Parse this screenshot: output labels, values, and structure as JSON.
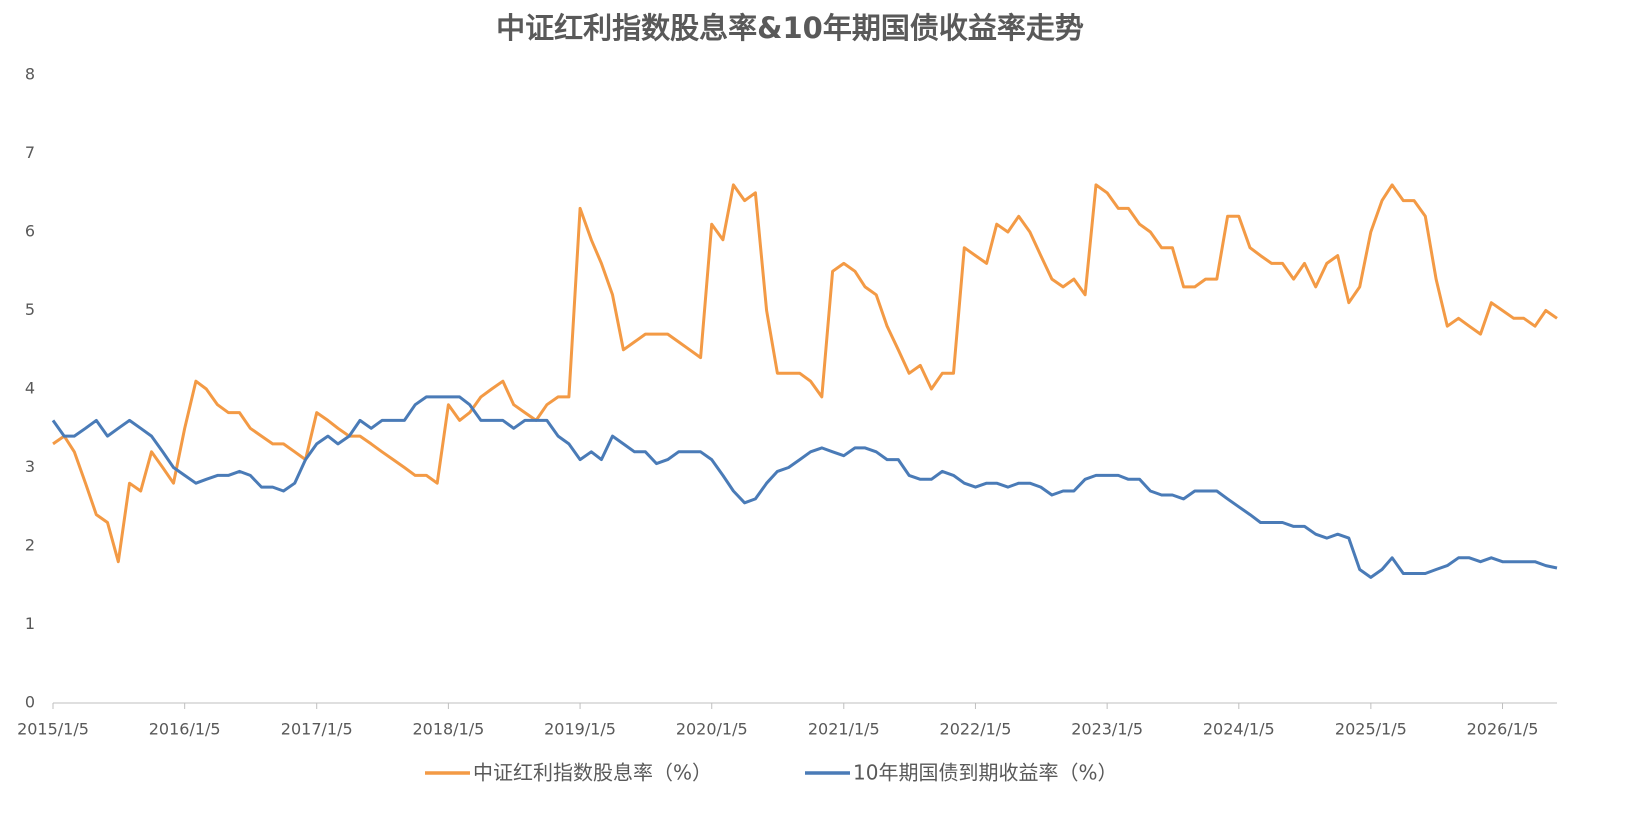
{
  "chart_data": {
    "type": "line",
    "title": "中证红利指数股息率&10年期国债收益率走势",
    "x": [
      "2015/1/5",
      "2015/2/5",
      "2015/3/5",
      "2015/4/5",
      "2015/5/5",
      "2015/6/5",
      "2015/7/5",
      "2015/8/5",
      "2015/9/5",
      "2015/10/5",
      "2015/11/5",
      "2015/12/5",
      "2016/1/5",
      "2016/2/5",
      "2016/3/5",
      "2016/4/5",
      "2016/5/5",
      "2016/6/5",
      "2016/7/5",
      "2016/8/5",
      "2016/9/5",
      "2016/10/5",
      "2016/11/5",
      "2016/12/5",
      "2017/1/5",
      "2017/2/5",
      "2017/3/5",
      "2017/4/5",
      "2017/5/5",
      "2017/6/5",
      "2017/7/5",
      "2017/8/5",
      "2017/9/5",
      "2017/10/5",
      "2017/11/5",
      "2017/12/5",
      "2018/1/5",
      "2018/2/5",
      "2018/3/5",
      "2018/4/5",
      "2018/5/5",
      "2018/6/5",
      "2018/7/5",
      "2018/8/5",
      "2018/9/5",
      "2018/10/5",
      "2018/11/5",
      "2018/12/5",
      "2019/1/5",
      "2019/2/5",
      "2019/3/5",
      "2019/4/5",
      "2019/5/5",
      "2019/6/5",
      "2019/7/5",
      "2019/8/5",
      "2019/9/5",
      "2019/10/5",
      "2019/11/5",
      "2019/12/5",
      "2020/1/5",
      "2020/2/5",
      "2020/3/5",
      "2020/4/5",
      "2020/5/5",
      "2020/6/5",
      "2020/7/5",
      "2020/8/5",
      "2020/9/5",
      "2020/10/5",
      "2020/11/5",
      "2020/12/5",
      "2021/1/5",
      "2021/2/5",
      "2021/3/5",
      "2021/4/5",
      "2021/5/5",
      "2021/6/5",
      "2021/7/5",
      "2021/8/5",
      "2021/9/5",
      "2021/10/5",
      "2021/11/5",
      "2021/12/5",
      "2022/1/5",
      "2022/2/5",
      "2022/3/5",
      "2022/4/5",
      "2022/5/5",
      "2022/6/5",
      "2022/7/5",
      "2022/8/5",
      "2022/9/5",
      "2022/10/5",
      "2022/11/5",
      "2022/12/5",
      "2023/1/5",
      "2023/2/5",
      "2023/3/5",
      "2023/4/5",
      "2023/5/5",
      "2023/6/5",
      "2023/7/5",
      "2023/8/5",
      "2023/9/5",
      "2023/10/5",
      "2023/11/5",
      "2023/12/5",
      "2024/1/5",
      "2024/2/5",
      "2024/3/5",
      "2024/4/5",
      "2024/5/5",
      "2024/6/5",
      "2024/7/5",
      "2024/8/5",
      "2024/9/5",
      "2024/10/5",
      "2024/11/5",
      "2024/12/5",
      "2025/1/5",
      "2025/2/5",
      "2025/3/5",
      "2025/4/5",
      "2025/5/5",
      "2025/6/5",
      "2025/7/5",
      "2025/8/5",
      "2025/9/5",
      "2025/10/5",
      "2025/11/5",
      "2025/12/5",
      "2026/1/5",
      "2026/2/5",
      "2026/3/5",
      "2026/4/5",
      "2026/5/5",
      "2026/6/5"
    ],
    "series": [
      {
        "name": "中证红利指数股息率（%）",
        "color": "#f39a45",
        "values": [
          3.3,
          3.4,
          3.2,
          2.8,
          2.4,
          2.3,
          1.8,
          2.8,
          2.7,
          3.2,
          3.0,
          2.8,
          3.5,
          4.1,
          4.0,
          3.8,
          3.7,
          3.7,
          3.5,
          3.4,
          3.3,
          3.3,
          3.2,
          3.1,
          3.7,
          3.6,
          3.5,
          3.4,
          3.4,
          3.3,
          3.2,
          3.1,
          3.0,
          2.9,
          2.9,
          2.8,
          3.8,
          3.6,
          3.7,
          3.9,
          4.0,
          4.1,
          3.8,
          3.7,
          3.6,
          3.8,
          3.9,
          3.9,
          6.3,
          5.9,
          5.6,
          5.2,
          4.5,
          4.6,
          4.7,
          4.7,
          4.7,
          4.6,
          4.5,
          4.4,
          6.1,
          5.9,
          6.6,
          6.4,
          6.5,
          5.0,
          4.2,
          4.2,
          4.2,
          4.1,
          3.9,
          5.5,
          5.6,
          5.5,
          5.3,
          5.2,
          4.8,
          4.5,
          4.2,
          4.3,
          4.0,
          4.2,
          4.2,
          5.8,
          5.7,
          5.6,
          6.1,
          6.0,
          6.2,
          6.0,
          5.7,
          5.4,
          5.3,
          5.4,
          5.2,
          6.6,
          6.5,
          6.3,
          6.3,
          6.1,
          6.0,
          5.8,
          5.8,
          5.3,
          5.3,
          5.4,
          5.4,
          6.2,
          6.2,
          5.8,
          5.7,
          5.6,
          5.6,
          5.4,
          5.6,
          5.3,
          5.6,
          5.7,
          5.1,
          5.3,
          6.0,
          6.4,
          6.6,
          6.4,
          6.4,
          6.2,
          5.4,
          4.8,
          4.9,
          4.8,
          4.7,
          5.1,
          5.0,
          4.9,
          4.9,
          4.8,
          5.0,
          4.9
        ]
      },
      {
        "name": "10年期国债到期收益率（%）",
        "color": "#4a7bb7",
        "values": [
          3.6,
          3.4,
          3.4,
          3.5,
          3.6,
          3.4,
          3.5,
          3.6,
          3.5,
          3.4,
          3.2,
          3.0,
          2.9,
          2.8,
          2.85,
          2.9,
          2.9,
          2.95,
          2.9,
          2.75,
          2.75,
          2.7,
          2.8,
          3.1,
          3.3,
          3.4,
          3.3,
          3.4,
          3.6,
          3.5,
          3.6,
          3.6,
          3.6,
          3.8,
          3.9,
          3.9,
          3.9,
          3.9,
          3.8,
          3.6,
          3.6,
          3.6,
          3.5,
          3.6,
          3.6,
          3.6,
          3.4,
          3.3,
          3.1,
          3.2,
          3.1,
          3.4,
          3.3,
          3.2,
          3.2,
          3.05,
          3.1,
          3.2,
          3.2,
          3.2,
          3.1,
          2.9,
          2.7,
          2.55,
          2.6,
          2.8,
          2.95,
          3.0,
          3.1,
          3.2,
          3.25,
          3.2,
          3.15,
          3.25,
          3.25,
          3.2,
          3.1,
          3.1,
          2.9,
          2.85,
          2.85,
          2.95,
          2.9,
          2.8,
          2.75,
          2.8,
          2.8,
          2.75,
          2.8,
          2.8,
          2.75,
          2.65,
          2.7,
          2.7,
          2.85,
          2.9,
          2.9,
          2.9,
          2.85,
          2.85,
          2.7,
          2.65,
          2.65,
          2.6,
          2.7,
          2.7,
          2.7,
          2.6,
          2.5,
          2.4,
          2.3,
          2.3,
          2.3,
          2.25,
          2.25,
          2.15,
          2.1,
          2.15,
          2.1,
          1.7,
          1.6,
          1.7,
          1.85,
          1.65,
          1.65,
          1.65,
          1.7,
          1.75,
          1.85,
          1.85,
          1.8,
          1.85,
          1.8,
          1.8,
          1.8,
          1.8,
          1.75,
          1.72
        ]
      }
    ],
    "xlim": [
      "2015/1/5",
      "2026/6/5"
    ],
    "xticks": [
      "2015/1/5",
      "2016/1/5",
      "2017/1/5",
      "2018/1/5",
      "2019/1/5",
      "2020/1/5",
      "2021/1/5",
      "2022/1/5",
      "2023/1/5",
      "2024/1/5",
      "2025/1/5",
      "2026/1/5"
    ],
    "ylim": [
      0,
      8
    ],
    "yticks": [
      0,
      1,
      2,
      3,
      4,
      5,
      6,
      7,
      8
    ],
    "grid": false,
    "legend": "bottom"
  }
}
